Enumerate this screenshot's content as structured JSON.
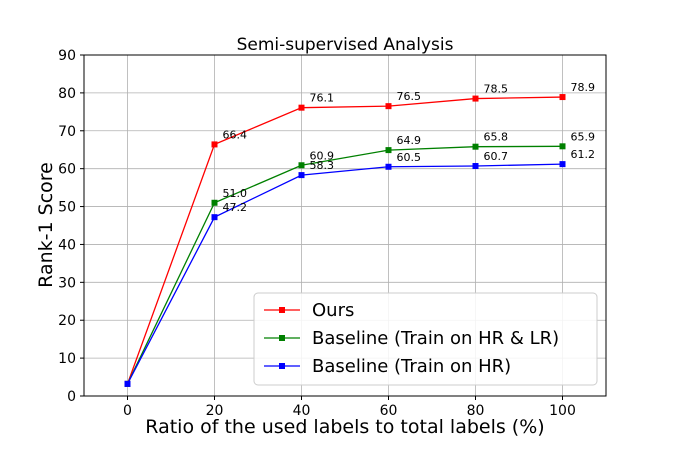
{
  "chart_data": {
    "type": "line",
    "title": "Semi-supervised Analysis",
    "xlabel": "Ratio of the used labels to total labels (%)",
    "ylabel": "Rank-1 Score",
    "x": [
      0,
      20,
      40,
      60,
      80,
      100
    ],
    "xlim": [
      -10,
      110
    ],
    "ylim": [
      0,
      90
    ],
    "xticks": [
      "0",
      "20",
      "40",
      "60",
      "80",
      "100"
    ],
    "yticks": [
      "0",
      "10",
      "20",
      "30",
      "40",
      "50",
      "60",
      "70",
      "80",
      "90"
    ],
    "grid": true,
    "legend_position": "bottom-right",
    "series": [
      {
        "name": "Ours",
        "color": "#ff0000",
        "values": [
          3.2,
          66.4,
          76.1,
          76.5,
          78.5,
          78.9
        ],
        "labels": [
          "",
          "66.4",
          "76.1",
          "76.5",
          "78.5",
          "78.9"
        ]
      },
      {
        "name": "Baseline (Train on HR & LR)",
        "color": "#008000",
        "values": [
          3.2,
          51.0,
          60.9,
          64.9,
          65.8,
          65.9
        ],
        "labels": [
          "",
          "51.0",
          "60.9",
          "64.9",
          "65.8",
          "65.9"
        ]
      },
      {
        "name": "Baseline (Train on HR)",
        "color": "#0000ff",
        "values": [
          3.2,
          47.2,
          58.3,
          60.5,
          60.7,
          61.2
        ],
        "labels": [
          "",
          "47.2",
          "58.3",
          "60.5",
          "60.7",
          "61.2"
        ]
      }
    ]
  }
}
